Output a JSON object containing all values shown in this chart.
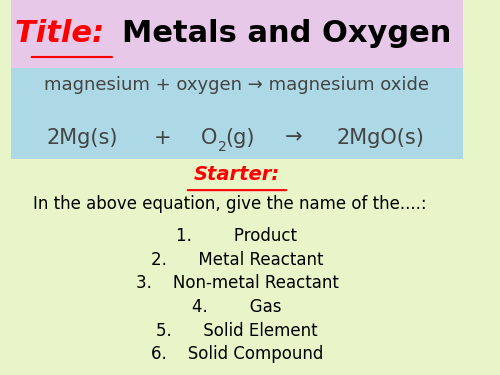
{
  "title_prefix": "Title: ",
  "title_suffix": "Metals and Oxygen",
  "title_prefix_color": "#ff0000",
  "title_suffix_color": "#000000",
  "title_bg_color": "#e8c8e8",
  "equation_bg_color": "#add8e6",
  "equation_word": "magnesium + oxygen → magnesium oxide",
  "starter_bg_color": "#e8f5c8",
  "starter_label": "Starter:",
  "starter_color": "#ff0000",
  "intro_text": "In the above equation, give the name of the....:",
  "items": [
    "1.        Product",
    "2.      Metal Reactant",
    "3.    Non-metal Reactant",
    "4.        Gas",
    "5.      Solid Element",
    "6.    Solid Compound"
  ],
  "font_family": "DejaVu Sans",
  "title_fontsize": 22,
  "eq_word_fontsize": 13,
  "eq_formula_fontsize": 15,
  "starter_fontsize": 14,
  "intro_fontsize": 12,
  "item_fontsize": 12,
  "eq_color": "#444444"
}
